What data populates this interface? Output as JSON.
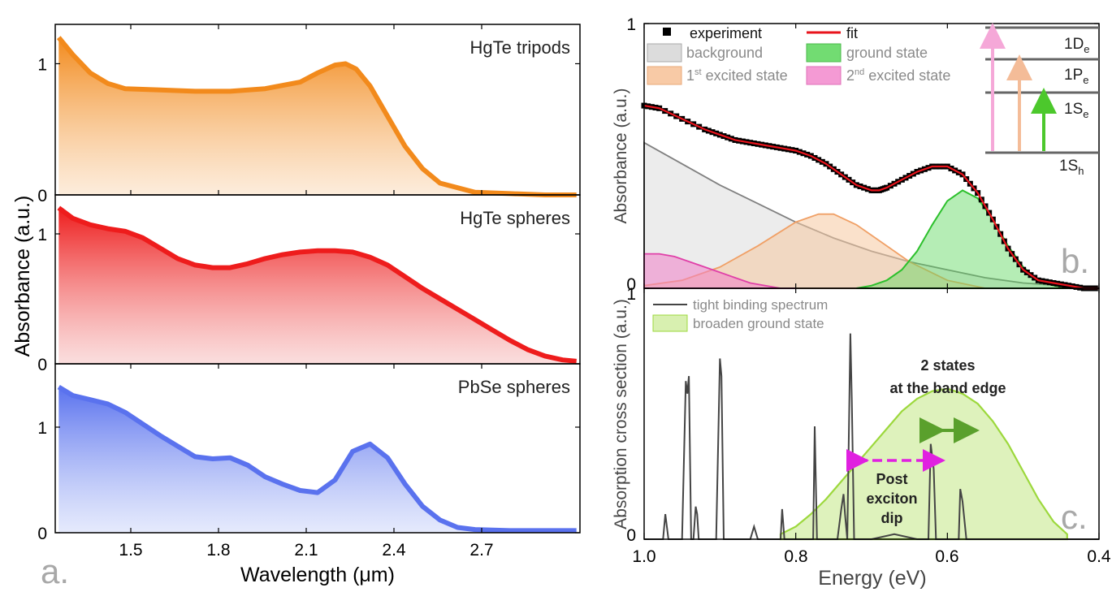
{
  "figure": {
    "left": {
      "panel_letter": "a.",
      "x_label": "Wavelength (μm)",
      "y_label": "Absorbance (a.u.)",
      "x_ticks": [
        "1.5",
        "1.8",
        "2.1",
        "2.4",
        "2.7"
      ]
    },
    "right": {
      "x_label": "Energy (eV)",
      "x_ticks": [
        "1.0",
        "0.8",
        "0.6",
        "0.4"
      ]
    }
  },
  "chart_data": [
    {
      "id": "a-tripods",
      "type": "area",
      "label": "HgTe tripods",
      "color": "#f28a1c",
      "xlim": [
        1.3,
        2.8
      ],
      "ylim": [
        0,
        1.3
      ],
      "y_ticks": [
        "0",
        "1"
      ],
      "x": [
        1.31,
        1.35,
        1.4,
        1.45,
        1.5,
        1.6,
        1.7,
        1.8,
        1.9,
        2.0,
        2.05,
        2.1,
        2.13,
        2.16,
        2.2,
        2.25,
        2.3,
        2.35,
        2.4,
        2.5,
        2.6,
        2.7,
        2.79
      ],
      "y": [
        1.2,
        1.07,
        0.93,
        0.85,
        0.81,
        0.8,
        0.79,
        0.79,
        0.81,
        0.86,
        0.93,
        0.99,
        1.0,
        0.96,
        0.83,
        0.6,
        0.37,
        0.2,
        0.09,
        0.02,
        0.01,
        0.0,
        0.0
      ]
    },
    {
      "id": "a-hgte-spheres",
      "type": "area",
      "label": "HgTe spheres",
      "color": "#ee1c1c",
      "xlim": [
        1.3,
        2.8
      ],
      "ylim": [
        0,
        1.3
      ],
      "y_ticks": [
        "0",
        "1"
      ],
      "x": [
        1.31,
        1.35,
        1.4,
        1.45,
        1.5,
        1.55,
        1.6,
        1.65,
        1.7,
        1.75,
        1.8,
        1.85,
        1.9,
        1.95,
        2.0,
        2.05,
        2.1,
        2.15,
        2.2,
        2.25,
        2.3,
        2.35,
        2.4,
        2.45,
        2.5,
        2.55,
        2.6,
        2.65,
        2.7,
        2.75,
        2.79
      ],
      "y": [
        1.2,
        1.12,
        1.07,
        1.04,
        1.02,
        0.97,
        0.89,
        0.81,
        0.76,
        0.74,
        0.74,
        0.77,
        0.81,
        0.84,
        0.86,
        0.87,
        0.87,
        0.86,
        0.82,
        0.76,
        0.67,
        0.58,
        0.5,
        0.42,
        0.34,
        0.26,
        0.18,
        0.11,
        0.06,
        0.03,
        0.02
      ]
    },
    {
      "id": "a-pbse",
      "type": "area",
      "label": "PbSe spheres",
      "color": "#5a72ee",
      "xlim": [
        1.3,
        2.8
      ],
      "ylim": [
        0,
        1.6
      ],
      "y_ticks": [
        "0",
        "1"
      ],
      "x": [
        1.31,
        1.35,
        1.4,
        1.45,
        1.5,
        1.55,
        1.6,
        1.65,
        1.7,
        1.75,
        1.8,
        1.85,
        1.9,
        1.95,
        2.0,
        2.05,
        2.1,
        2.15,
        2.2,
        2.25,
        2.3,
        2.35,
        2.4,
        2.45,
        2.5,
        2.6,
        2.7,
        2.79
      ],
      "y": [
        1.38,
        1.3,
        1.26,
        1.22,
        1.14,
        1.03,
        0.92,
        0.82,
        0.72,
        0.7,
        0.71,
        0.64,
        0.53,
        0.46,
        0.4,
        0.38,
        0.5,
        0.77,
        0.84,
        0.71,
        0.46,
        0.25,
        0.12,
        0.05,
        0.03,
        0.02,
        0.02,
        0.02
      ]
    },
    {
      "id": "b-fit",
      "type": "area",
      "panel_letter": "b.",
      "y_label": "Absorbance (a.u.)",
      "xlim": [
        1.0,
        0.4
      ],
      "ylim": [
        0,
        1.0
      ],
      "y_ticks": [
        "0",
        "1"
      ],
      "legend": {
        "experiment": "experiment",
        "fit": "fit",
        "background": "background",
        "ground": "ground state",
        "first_excited_pre": "1",
        "first_excited_sup": "st",
        "first_excited_post": " excited state",
        "second_excited_pre": "2",
        "second_excited_sup": "nd",
        "second_excited_post": " excited state"
      },
      "level_labels": [
        {
          "main": "1D",
          "sub": "e"
        },
        {
          "main": "1P",
          "sub": "e"
        },
        {
          "main": "1S",
          "sub": "e"
        },
        {
          "main": "1S",
          "sub": "h"
        }
      ],
      "colors": {
        "experiment": "#000000",
        "fit": "#e8141c",
        "background": "#dcdcdc",
        "ground": "#5cd85c",
        "first": "#f6c8a0",
        "second": "#f080c8"
      },
      "series": [
        {
          "name": "experiment",
          "x": [
            1.0,
            0.98,
            0.95,
            0.92,
            0.9,
            0.88,
            0.86,
            0.84,
            0.82,
            0.8,
            0.78,
            0.76,
            0.74,
            0.72,
            0.7,
            0.69,
            0.68,
            0.66,
            0.64,
            0.62,
            0.6,
            0.58,
            0.56,
            0.54,
            0.52,
            0.5,
            0.48,
            0.46,
            0.44,
            0.42,
            0.4
          ],
          "y": [
            0.69,
            0.68,
            0.64,
            0.6,
            0.58,
            0.56,
            0.55,
            0.54,
            0.53,
            0.52,
            0.5,
            0.47,
            0.43,
            0.39,
            0.37,
            0.37,
            0.38,
            0.41,
            0.44,
            0.46,
            0.46,
            0.43,
            0.36,
            0.26,
            0.15,
            0.07,
            0.03,
            0.02,
            0.01,
            0.0,
            0.0
          ]
        },
        {
          "name": "fit",
          "x": [
            1.0,
            0.98,
            0.95,
            0.92,
            0.9,
            0.88,
            0.86,
            0.84,
            0.82,
            0.8,
            0.78,
            0.76,
            0.74,
            0.72,
            0.7,
            0.69,
            0.68,
            0.66,
            0.64,
            0.62,
            0.6,
            0.58,
            0.56,
            0.54,
            0.52,
            0.5,
            0.48,
            0.46,
            0.44,
            0.42,
            0.4
          ],
          "y": [
            0.69,
            0.68,
            0.64,
            0.6,
            0.58,
            0.56,
            0.55,
            0.54,
            0.53,
            0.52,
            0.5,
            0.47,
            0.43,
            0.39,
            0.37,
            0.37,
            0.38,
            0.41,
            0.44,
            0.46,
            0.46,
            0.43,
            0.36,
            0.26,
            0.15,
            0.07,
            0.03,
            0.02,
            0.01,
            0.0,
            0.0
          ]
        },
        {
          "name": "background",
          "x": [
            1.0,
            0.95,
            0.9,
            0.85,
            0.8,
            0.75,
            0.7,
            0.65,
            0.6,
            0.55,
            0.5,
            0.45,
            0.4
          ],
          "y": [
            0.55,
            0.47,
            0.39,
            0.32,
            0.25,
            0.19,
            0.14,
            0.1,
            0.07,
            0.04,
            0.02,
            0.01,
            0.0
          ]
        },
        {
          "name": "ground state",
          "x": [
            0.72,
            0.7,
            0.68,
            0.66,
            0.64,
            0.62,
            0.6,
            0.58,
            0.56,
            0.54,
            0.52,
            0.5,
            0.48,
            0.46,
            0.44,
            0.42
          ],
          "y": [
            0.0,
            0.01,
            0.03,
            0.07,
            0.14,
            0.24,
            0.33,
            0.37,
            0.34,
            0.26,
            0.16,
            0.08,
            0.03,
            0.01,
            0.0,
            0.0
          ]
        },
        {
          "name": "1st excited state",
          "x": [
            1.0,
            0.95,
            0.9,
            0.85,
            0.8,
            0.77,
            0.75,
            0.72,
            0.7,
            0.65,
            0.6,
            0.55
          ],
          "y": [
            0.01,
            0.03,
            0.08,
            0.16,
            0.25,
            0.28,
            0.28,
            0.24,
            0.2,
            0.1,
            0.03,
            0.0
          ]
        },
        {
          "name": "2nd excited state",
          "x": [
            1.0,
            0.98,
            0.96,
            0.94,
            0.92,
            0.9,
            0.88,
            0.86,
            0.84,
            0.82,
            0.8
          ],
          "y": [
            0.13,
            0.13,
            0.12,
            0.1,
            0.08,
            0.06,
            0.04,
            0.02,
            0.01,
            0.0,
            0.0
          ]
        }
      ]
    },
    {
      "id": "c-tb",
      "type": "line",
      "panel_letter": "c.",
      "y_label": "Absorption cross section (a.u.)",
      "xlim": [
        1.0,
        0.4
      ],
      "ylim": [
        0,
        1.0
      ],
      "y_ticks": [
        "0",
        "1"
      ],
      "legend": {
        "tb": "tight binding spectrum",
        "broaden": "broaden ground state"
      },
      "colors": {
        "tb": "#444444",
        "broaden": "#9cd83c",
        "magenta": "#e020e0",
        "green": "#5aa02c"
      },
      "annotations": {
        "band_edge_line1": "2 states",
        "band_edge_line2": "at the band edge",
        "dip_line1": "Post",
        "dip_line2": "exciton",
        "dip_line3": "dip"
      },
      "series": [
        {
          "name": "tight binding spectrum",
          "x": [
            1.0,
            0.985,
            0.975,
            0.972,
            0.968,
            0.96,
            0.95,
            0.945,
            0.943,
            0.941,
            0.938,
            0.935,
            0.932,
            0.93,
            0.928,
            0.92,
            0.905,
            0.9,
            0.898,
            0.895,
            0.89,
            0.87,
            0.86,
            0.855,
            0.85,
            0.83,
            0.82,
            0.818,
            0.815,
            0.81,
            0.79,
            0.777,
            0.775,
            0.772,
            0.765,
            0.745,
            0.74,
            0.737,
            0.735,
            0.732,
            0.728,
            0.726,
            0.723,
            0.72,
            0.71,
            0.7,
            0.67,
            0.64,
            0.625,
            0.622,
            0.618,
            0.615,
            0.605,
            0.595,
            0.59,
            0.585,
            0.583,
            0.58,
            0.575,
            0.55,
            0.5,
            0.45,
            0.4
          ],
          "y": [
            0.0,
            0.0,
            0.0,
            0.1,
            0.0,
            0.0,
            0.0,
            0.63,
            0.58,
            0.65,
            0.0,
            0.0,
            0.13,
            0.1,
            0.0,
            0.0,
            0.0,
            0.72,
            0.65,
            0.0,
            0.0,
            0.0,
            0.0,
            0.05,
            0.0,
            0.0,
            0.0,
            0.12,
            0.0,
            0.0,
            0.0,
            0.0,
            0.45,
            0.0,
            0.0,
            0.0,
            0.12,
            0.18,
            0.1,
            0.0,
            0.82,
            0.55,
            0.0,
            0.0,
            0.0,
            0.0,
            0.02,
            0.0,
            0.0,
            0.38,
            0.28,
            0.0,
            0.0,
            0.0,
            0.0,
            0.0,
            0.2,
            0.15,
            0.0,
            0.0,
            0.0,
            0.0,
            0.0
          ]
        },
        {
          "name": "broaden ground state",
          "x": [
            0.82,
            0.8,
            0.78,
            0.76,
            0.74,
            0.72,
            0.7,
            0.68,
            0.66,
            0.64,
            0.62,
            0.6,
            0.58,
            0.56,
            0.54,
            0.52,
            0.5,
            0.48,
            0.46,
            0.442
          ],
          "y": [
            0.02,
            0.05,
            0.1,
            0.16,
            0.23,
            0.3,
            0.37,
            0.44,
            0.51,
            0.56,
            0.59,
            0.6,
            0.58,
            0.54,
            0.47,
            0.38,
            0.27,
            0.16,
            0.07,
            0.02
          ]
        }
      ]
    }
  ]
}
